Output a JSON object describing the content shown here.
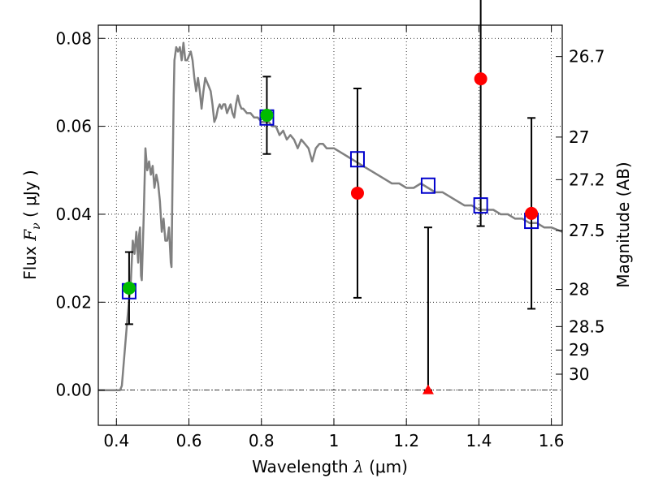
{
  "chart_data": {
    "type": "scatter",
    "xlabel": {
      "pre": "Wavelength  ",
      "sym": "λ",
      "unit": " (μm)"
    },
    "ylabel": {
      "pre": "Flux  ",
      "sym": "F",
      "sub": "ν",
      "unit": "  ( μJy )"
    },
    "y2label": "Magnitude (AB)",
    "xlim": [
      0.35,
      1.63
    ],
    "ylim": [
      -0.008,
      0.083
    ],
    "x_ticks": [
      0.4,
      0.6,
      0.8,
      1.0,
      1.2,
      1.4,
      1.6
    ],
    "x_tick_labels": [
      "0.4",
      "0.6",
      "0.8",
      "1",
      "1.2",
      "1.4",
      "1.6"
    ],
    "y_ticks": [
      0.0,
      0.02,
      0.04,
      0.06,
      0.08
    ],
    "y_tick_labels": [
      "0.00",
      "0.02",
      "0.04",
      "0.06",
      "0.08"
    ],
    "y2_ticks": [
      26.7,
      27,
      27.2,
      27.5,
      28,
      28.5,
      29,
      30
    ],
    "y2_tick_labels": [
      "26.7",
      "27",
      "27.2",
      "27.5",
      "28",
      "28.5",
      "29",
      "30"
    ],
    "grid": true,
    "zero_line": true,
    "colors": {
      "model": "#808080",
      "detection_green": "#00bb00",
      "detection_red": "#ff0000",
      "model_band": "#0000cc",
      "errorbar": "#000000"
    },
    "model_spectrum": {
      "x": [
        0.35,
        0.4,
        0.405,
        0.41,
        0.415,
        0.42,
        0.43,
        0.44,
        0.445,
        0.45,
        0.455,
        0.46,
        0.462,
        0.465,
        0.468,
        0.47,
        0.475,
        0.48,
        0.485,
        0.49,
        0.495,
        0.5,
        0.505,
        0.51,
        0.515,
        0.52,
        0.525,
        0.53,
        0.535,
        0.54,
        0.545,
        0.55,
        0.552,
        0.555,
        0.558,
        0.56,
        0.565,
        0.57,
        0.575,
        0.58,
        0.585,
        0.59,
        0.595,
        0.6,
        0.605,
        0.61,
        0.615,
        0.62,
        0.625,
        0.63,
        0.635,
        0.64,
        0.645,
        0.65,
        0.655,
        0.66,
        0.665,
        0.67,
        0.675,
        0.68,
        0.685,
        0.69,
        0.695,
        0.7,
        0.705,
        0.71,
        0.715,
        0.72,
        0.725,
        0.73,
        0.735,
        0.74,
        0.745,
        0.75,
        0.76,
        0.77,
        0.78,
        0.79,
        0.8,
        0.81,
        0.82,
        0.83,
        0.84,
        0.85,
        0.86,
        0.87,
        0.88,
        0.89,
        0.9,
        0.91,
        0.92,
        0.93,
        0.94,
        0.95,
        0.96,
        0.97,
        0.98,
        0.99,
        1.0,
        1.02,
        1.04,
        1.06,
        1.08,
        1.1,
        1.12,
        1.14,
        1.16,
        1.18,
        1.2,
        1.22,
        1.24,
        1.26,
        1.28,
        1.3,
        1.32,
        1.34,
        1.36,
        1.38,
        1.4,
        1.42,
        1.44,
        1.46,
        1.48,
        1.5,
        1.52,
        1.54,
        1.56,
        1.58,
        1.6,
        1.63
      ],
      "y": [
        0.0,
        0.0,
        0.0,
        0.0,
        0.001,
        0.006,
        0.016,
        0.025,
        0.034,
        0.031,
        0.036,
        0.029,
        0.035,
        0.037,
        0.026,
        0.025,
        0.039,
        0.055,
        0.05,
        0.052,
        0.049,
        0.051,
        0.046,
        0.049,
        0.047,
        0.043,
        0.036,
        0.039,
        0.034,
        0.034,
        0.037,
        0.029,
        0.028,
        0.049,
        0.067,
        0.075,
        0.078,
        0.077,
        0.078,
        0.075,
        0.079,
        0.075,
        0.075,
        0.076,
        0.077,
        0.075,
        0.071,
        0.068,
        0.071,
        0.068,
        0.064,
        0.068,
        0.071,
        0.07,
        0.069,
        0.068,
        0.065,
        0.061,
        0.062,
        0.064,
        0.065,
        0.064,
        0.065,
        0.065,
        0.063,
        0.064,
        0.065,
        0.063,
        0.062,
        0.065,
        0.067,
        0.065,
        0.064,
        0.064,
        0.063,
        0.063,
        0.062,
        0.062,
        0.061,
        0.061,
        0.061,
        0.06,
        0.06,
        0.058,
        0.059,
        0.057,
        0.058,
        0.057,
        0.055,
        0.057,
        0.056,
        0.055,
        0.052,
        0.055,
        0.056,
        0.056,
        0.055,
        0.055,
        0.055,
        0.054,
        0.053,
        0.052,
        0.051,
        0.05,
        0.049,
        0.048,
        0.047,
        0.047,
        0.046,
        0.046,
        0.047,
        0.046,
        0.045,
        0.045,
        0.044,
        0.043,
        0.042,
        0.042,
        0.041,
        0.041,
        0.041,
        0.04,
        0.04,
        0.039,
        0.039,
        0.038,
        0.038,
        0.037,
        0.037,
        0.036
      ]
    },
    "model_band_fluxes": {
      "x": [
        0.435,
        0.815,
        1.065,
        1.26,
        1.405,
        1.545
      ],
      "y": [
        0.0225,
        0.062,
        0.0525,
        0.0465,
        0.042,
        0.0385
      ]
    },
    "detections_green": {
      "x": [
        0.435,
        0.815
      ],
      "y": [
        0.0232,
        0.0625
      ],
      "yerr": [
        0.0082,
        0.0088
      ]
    },
    "detections_red": {
      "x": [
        1.065,
        1.405,
        1.545
      ],
      "y": [
        0.0448,
        0.0708,
        0.0402
      ],
      "yerr": [
        0.0238,
        0.0335,
        0.0217
      ]
    },
    "upper_limits": {
      "x": [
        1.26
      ],
      "y": [
        0.0
      ],
      "ytop": [
        0.037
      ]
    }
  }
}
